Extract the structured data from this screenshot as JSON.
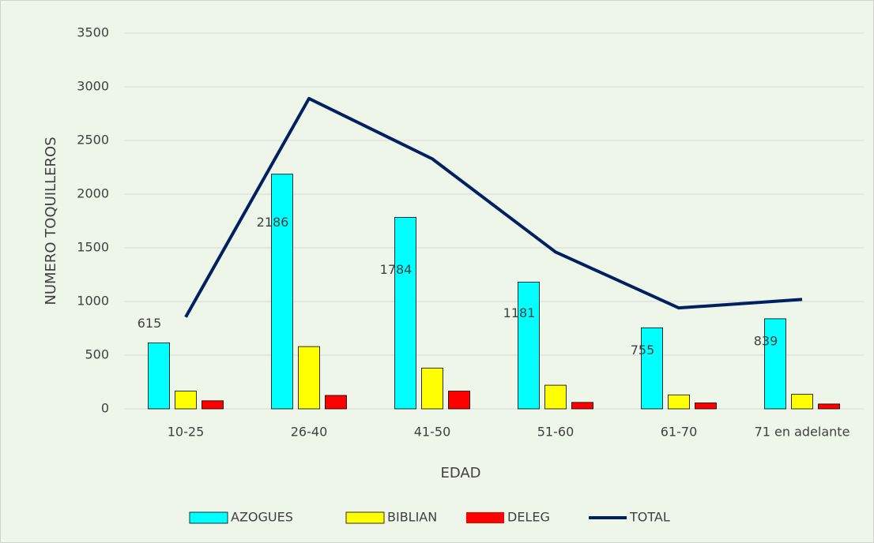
{
  "chart_data": {
    "type": "bar_line",
    "categories": [
      "10-25",
      "26-40",
      "41-50",
      "51-60",
      "61-70",
      "71 en adelante"
    ],
    "series": [
      {
        "name": "AZOGUES",
        "type": "bar",
        "color": "#00ffff",
        "values": [
          615,
          2186,
          1784,
          1181,
          755,
          839
        ]
      },
      {
        "name": "BIBLIAN",
        "type": "bar",
        "color": "#ffff00",
        "values": [
          165,
          580,
          380,
          220,
          130,
          135
        ]
      },
      {
        "name": "DELEG",
        "type": "bar",
        "color": "#ff0000",
        "values": [
          75,
          125,
          165,
          60,
          55,
          45
        ]
      },
      {
        "name": "TOTAL",
        "type": "line",
        "color": "#002060",
        "values": [
          855,
          2891,
          2329,
          1461,
          940,
          1019
        ]
      }
    ],
    "x_label": "EDAD",
    "y_label": "NUMERO TOQUILLEROS",
    "ylim": [
      0,
      3500
    ],
    "yticks": [
      0,
      500,
      1000,
      1500,
      2000,
      2500,
      3000,
      3500
    ],
    "grid": true,
    "legend": "bottom"
  }
}
